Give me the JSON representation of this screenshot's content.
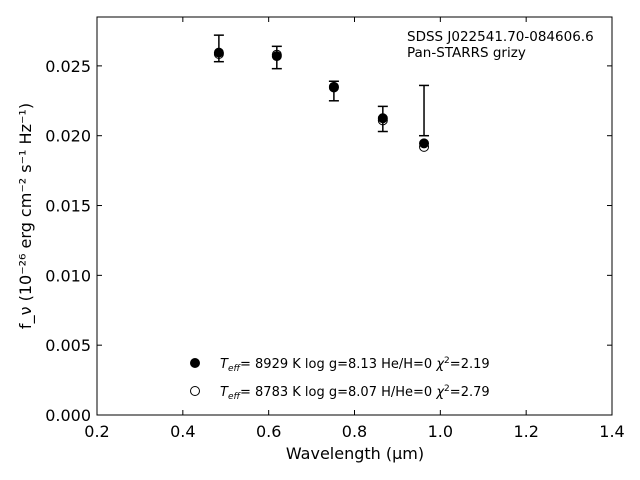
{
  "chart_data": {
    "type": "scatter",
    "xlabel": "Wavelength (μm)",
    "ylabel": "f_ν (10⁻²⁶ erg cm⁻² s⁻¹ Hz⁻¹)",
    "xlim": [
      0.2,
      1.4
    ],
    "ylim": [
      0.0,
      0.0285
    ],
    "xticks": [
      "0.2",
      "0.4",
      "0.6",
      "0.8",
      "1.0",
      "1.2",
      "1.4"
    ],
    "xtick_values": [
      0.2,
      0.4,
      0.6,
      0.8,
      1.0,
      1.2,
      1.4
    ],
    "yticks": [
      "0.000",
      "0.005",
      "0.010",
      "0.015",
      "0.020",
      "0.025"
    ],
    "ytick_values": [
      0.0,
      0.005,
      0.01,
      0.015,
      0.02,
      0.025
    ],
    "annotation_lines": [
      "SDSS J022541.70-084606.6",
      "Pan-STARRS grizy"
    ],
    "observed": {
      "wavelength": [
        0.484,
        0.619,
        0.752,
        0.866,
        0.962
      ],
      "flux": [
        0.02625,
        0.0256,
        0.0232,
        0.0212,
        0.0218
      ],
      "err": [
        0.00095,
        0.0008,
        0.0007,
        0.0009,
        0.0018
      ]
    },
    "series": [
      {
        "name": "T_eff= 8929 K  log g=8.13  He/H=0  χ²=2.19",
        "marker": "filled-circle",
        "x": [
          0.484,
          0.619,
          0.752,
          0.866,
          0.962
        ],
        "y": [
          0.02595,
          0.0257,
          0.0235,
          0.02125,
          0.01945
        ]
      },
      {
        "name": "T_eff= 8783 K  log g=8.07  H/He=0  χ²=2.79",
        "marker": "open-circle",
        "x": [
          0.484,
          0.619,
          0.752,
          0.866,
          0.962
        ],
        "y": [
          0.02585,
          0.0258,
          0.02345,
          0.0211,
          0.0192
        ]
      }
    ],
    "legend": [
      {
        "teff": "8929 K",
        "logg": "log g=8.13",
        "comp": "He/H=0",
        "chi2": "2.19"
      },
      {
        "teff": "8783 K",
        "logg": "log g=8.07",
        "comp": "H/He=0",
        "chi2": "2.79"
      }
    ],
    "legend_placement": "lower-center",
    "grid": false
  }
}
